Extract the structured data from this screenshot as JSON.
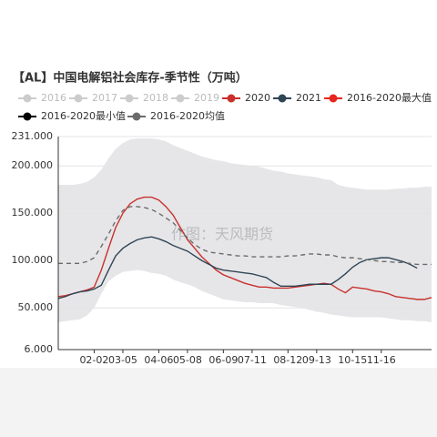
{
  "chart_data": {
    "type": "line",
    "title": "【AL】中国电解铝社会库存-季节性（万吨）",
    "watermark": "作图：天风期货",
    "categories": [
      null,
      null,
      null,
      null,
      null,
      "02-02",
      null,
      null,
      null,
      "03-05",
      null,
      null,
      null,
      null,
      "04-06",
      null,
      null,
      null,
      "05-08",
      null,
      null,
      null,
      null,
      "06-09",
      null,
      null,
      null,
      "07-11",
      null,
      null,
      null,
      null,
      "08-12",
      null,
      null,
      null,
      "09-13",
      null,
      null,
      null,
      null,
      "10-15",
      null,
      null,
      null,
      "11-16",
      null,
      null,
      null,
      null,
      null,
      null,
      null
    ],
    "inactive_legend": [
      "2016",
      "2017",
      "2018",
      "2019"
    ],
    "inactive_color": "#cccccc",
    "band_fill": "#e6e6e9",
    "series": [
      {
        "name": "2020",
        "color": "#c9302c",
        "style": "solid",
        "values": [
          62,
          63,
          65,
          67,
          69,
          72,
          90,
          113,
          135,
          150,
          160,
          165,
          167,
          167,
          164,
          157,
          148,
          135,
          122,
          113,
          104,
          97,
          90,
          85,
          82,
          79,
          76,
          74,
          72,
          72,
          71,
          71,
          71,
          72,
          73,
          74,
          75,
          76,
          75,
          70,
          66,
          72,
          71,
          70,
          68,
          67,
          65,
          62,
          61,
          60,
          59,
          59,
          61
        ]
      },
      {
        "name": "2021",
        "color": "#2f4554",
        "style": "solid",
        "values": [
          60,
          62,
          65,
          67,
          68,
          70,
          74,
          90,
          105,
          113,
          118,
          122,
          124,
          125,
          123,
          120,
          116,
          113,
          110,
          105,
          100,
          96,
          92,
          90,
          89,
          88,
          87,
          86,
          84,
          82,
          77,
          73,
          73,
          73,
          74,
          75,
          75,
          75,
          75,
          80,
          86,
          93,
          98,
          101,
          102,
          103,
          103,
          101,
          99,
          96,
          92,
          null,
          null
        ]
      },
      {
        "name": "2016-2020最大值",
        "color": "#e8261e",
        "style": "band",
        "values": [
          180,
          180,
          180,
          181,
          183,
          188,
          196,
          208,
          218,
          224,
          228,
          229,
          229,
          229,
          228,
          226,
          222,
          219,
          216,
          213,
          210,
          208,
          206,
          205,
          203,
          202,
          201,
          200,
          199,
          197,
          195,
          194,
          192,
          191,
          190,
          189,
          188,
          186,
          185,
          180,
          178,
          177,
          176,
          175,
          175,
          175,
          175,
          176,
          176,
          177,
          177,
          178,
          178
        ]
      },
      {
        "name": "2016-2020最小值",
        "color": "#000000",
        "style": "band",
        "values": [
          35,
          36,
          37,
          38,
          42,
          50,
          65,
          78,
          84,
          88,
          89,
          90,
          89,
          87,
          86,
          84,
          80,
          77,
          75,
          72,
          68,
          65,
          62,
          59,
          58,
          57,
          56,
          56,
          55,
          55,
          55,
          53,
          52,
          51,
          50,
          48,
          46,
          45,
          43,
          42,
          41,
          40,
          40,
          40,
          40,
          40,
          39,
          38,
          37,
          37,
          36,
          36,
          35
        ]
      },
      {
        "name": "2016-2020均值",
        "color": "#6b6b6b",
        "style": "dashed",
        "values": [
          97,
          97,
          97,
          97,
          99,
          103,
          115,
          128,
          142,
          153,
          157,
          157,
          156,
          154,
          150,
          145,
          140,
          132,
          124,
          117,
          112,
          109,
          108,
          107,
          106,
          105,
          105,
          104,
          104,
          104,
          104,
          104,
          105,
          105,
          106,
          107,
          107,
          106,
          106,
          104,
          103,
          103,
          102,
          101,
          100,
          99,
          99,
          98,
          98,
          97,
          96,
          96,
          96
        ]
      }
    ],
    "ylim": [
      6,
      231
    ],
    "yticks": [
      {
        "value": 6,
        "label": "6.000"
      },
      {
        "value": 50,
        "label": "50.000"
      },
      {
        "value": 100,
        "label": "100.000"
      },
      {
        "value": 150,
        "label": "150.000"
      },
      {
        "value": 200,
        "label": "200.000"
      },
      {
        "value": 231,
        "label": "231.000"
      }
    ],
    "grid": true
  }
}
